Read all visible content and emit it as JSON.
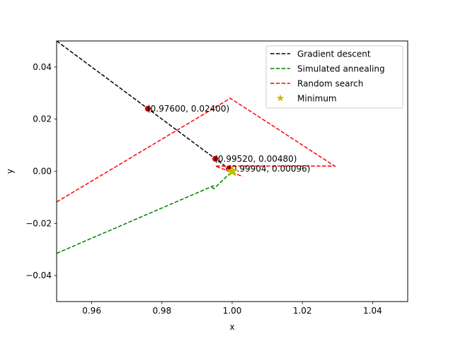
{
  "chart_data": {
    "type": "line",
    "xlabel": "x",
    "ylabel": "y",
    "xlim": [
      0.95,
      1.05
    ],
    "ylim": [
      -0.05,
      0.05
    ],
    "xticks": [
      0.96,
      0.98,
      1.0,
      1.02,
      1.04
    ],
    "xtick_labels": [
      "0.96",
      "0.98",
      "1.00",
      "1.02",
      "1.04"
    ],
    "yticks": [
      -0.04,
      -0.02,
      0.0,
      0.02,
      0.04
    ],
    "ytick_labels": [
      "−0.04",
      "−0.02",
      "0.00",
      "0.02",
      "0.04"
    ],
    "grid": false,
    "legend_position": "upper right",
    "series": [
      {
        "name": "Gradient descent",
        "style": "dashed",
        "color": "#000000",
        "x": [
          0.95,
          0.976,
          0.9952,
          0.99904
        ],
        "y": [
          0.05,
          0.024,
          0.0048,
          0.00096
        ]
      },
      {
        "name": "Simulated annealing",
        "style": "dashed",
        "color": "#008000",
        "x": [
          0.95,
          0.9948,
          0.9943,
          0.9948,
          1.0
        ],
        "y": [
          -0.0315,
          -0.0055,
          -0.0062,
          -0.0067,
          0.0
        ]
      },
      {
        "name": "Random search",
        "style": "dashed",
        "color": "#ff0000",
        "x": [
          0.95,
          0.9995,
          1.0292,
          0.9952,
          1.003
        ],
        "y": [
          -0.0118,
          0.028,
          0.002,
          0.002,
          -0.002
        ]
      }
    ],
    "minimum": {
      "name": "Minimum",
      "x": 1.0,
      "y": 0.0,
      "color": "#bfbf00",
      "marker": "star"
    },
    "annotated_points": [
      {
        "x": 0.976,
        "y": 0.024,
        "label": "(0.97600, 0.02400)",
        "color": "#cc0000"
      },
      {
        "x": 0.9952,
        "y": 0.0048,
        "label": "(0.99520, 0.00480)",
        "color": "#cc0000"
      },
      {
        "x": 0.99904,
        "y": 0.00096,
        "label": "(0.99904, 0.00096)",
        "color": "#cc0000"
      }
    ]
  }
}
